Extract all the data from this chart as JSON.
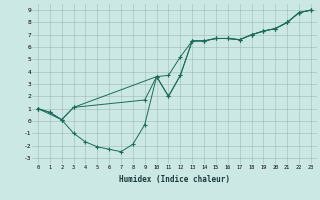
{
  "xlabel": "Humidex (Indice chaleur)",
  "bg_color": "#cce8e4",
  "grid_color": "#a0b8b4",
  "line_color": "#1a6b5a",
  "xlim": [
    -0.5,
    23.5
  ],
  "ylim": [
    -3.5,
    9.5
  ],
  "xticks": [
    0,
    1,
    2,
    3,
    4,
    5,
    6,
    7,
    8,
    9,
    10,
    11,
    12,
    13,
    14,
    15,
    16,
    17,
    18,
    19,
    20,
    21,
    22,
    23
  ],
  "yticks": [
    -3,
    -2,
    -1,
    0,
    1,
    2,
    3,
    4,
    5,
    6,
    7,
    8,
    9
  ],
  "line1_x": [
    0,
    1,
    2,
    3,
    4,
    5,
    6,
    7,
    8,
    9,
    10,
    11,
    12,
    13,
    14,
    15,
    16,
    17,
    18,
    19,
    20,
    21,
    22,
    23
  ],
  "line1_y": [
    1.0,
    0.7,
    0.1,
    -1.0,
    -1.7,
    -2.1,
    -2.3,
    -2.5,
    -1.9,
    -0.3,
    3.6,
    3.7,
    5.2,
    6.5,
    6.5,
    6.7,
    6.7,
    6.6,
    7.0,
    7.3,
    7.5,
    8.0,
    8.8,
    9.0
  ],
  "line2_x": [
    0,
    2,
    3,
    9,
    10,
    11,
    12,
    13,
    14,
    15,
    16,
    17,
    18,
    19,
    20,
    21,
    22,
    23
  ],
  "line2_y": [
    1.0,
    0.1,
    1.1,
    1.7,
    3.6,
    2.0,
    3.7,
    6.5,
    6.5,
    6.7,
    6.7,
    6.6,
    7.0,
    7.3,
    7.5,
    8.0,
    8.8,
    9.0
  ],
  "line3_x": [
    0,
    1,
    2,
    3,
    10,
    11,
    12,
    13,
    14,
    15,
    16,
    17,
    18,
    19,
    20,
    21,
    22,
    23
  ],
  "line3_y": [
    1.0,
    0.7,
    0.1,
    1.1,
    3.6,
    2.0,
    3.7,
    6.5,
    6.5,
    6.7,
    6.7,
    6.6,
    7.0,
    7.3,
    7.5,
    8.0,
    8.8,
    9.0
  ]
}
